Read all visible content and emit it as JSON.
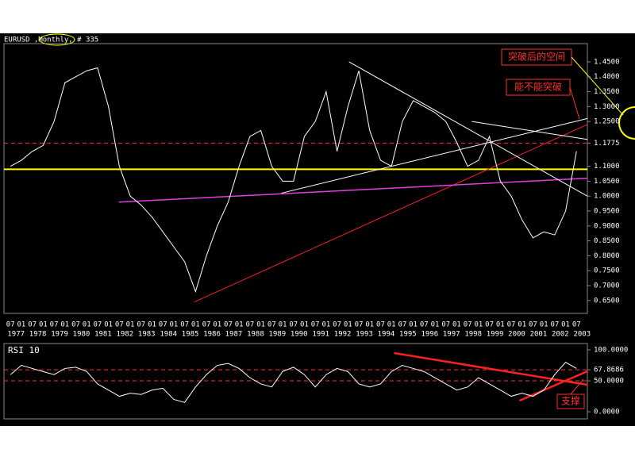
{
  "chart_data": [
    {
      "type": "line",
      "title": "EURUSD ,Monthly, # 335",
      "color": "#ffffff",
      "x": [
        1977.5,
        1978,
        1978.5,
        1979,
        1979.5,
        1980,
        1980.5,
        1981,
        1981.5,
        1982,
        1982.5,
        1983,
        1983.5,
        1984,
        1984.5,
        1985,
        1985.5,
        1986,
        1986.5,
        1987,
        1987.5,
        1988,
        1988.5,
        1989,
        1989.5,
        1990,
        1990.5,
        1991,
        1991.5,
        1992,
        1992.5,
        1993,
        1993.5,
        1994,
        1994.5,
        1995,
        1995.5,
        1996,
        1996.5,
        1997,
        1997.5,
        1998,
        1998.5,
        1999,
        1999.5,
        2000,
        2000.5,
        2001,
        2001.5,
        2002,
        2002.5,
        2003,
        2003.5
      ],
      "values": [
        1.1,
        1.12,
        1.15,
        1.17,
        1.25,
        1.38,
        1.4,
        1.42,
        1.43,
        1.3,
        1.1,
        1.0,
        0.97,
        0.93,
        0.88,
        0.83,
        0.78,
        0.68,
        0.8,
        0.9,
        0.98,
        1.1,
        1.2,
        1.22,
        1.1,
        1.05,
        1.05,
        1.2,
        1.25,
        1.35,
        1.15,
        1.3,
        1.42,
        1.22,
        1.12,
        1.1,
        1.25,
        1.32,
        1.3,
        1.28,
        1.25,
        1.18,
        1.1,
        1.12,
        1.2,
        1.05,
        1.0,
        0.92,
        0.86,
        0.88,
        0.87,
        0.95,
        1.15
      ],
      "xlim": [
        1977.2,
        2004.0
      ],
      "ylim": [
        0.607,
        1.511
      ],
      "yticks": [
        {
          "value": 1.45,
          "label": "1.4500"
        },
        {
          "value": 1.4,
          "label": "1.4000"
        },
        {
          "value": 1.35,
          "label": "1.3500"
        },
        {
          "value": 1.3,
          "label": "1.3000"
        },
        {
          "value": 1.25,
          "label": "1.2500"
        },
        {
          "value": 1.1775,
          "label": "1.1775"
        },
        {
          "value": 1.1,
          "label": "1.1000"
        },
        {
          "value": 1.05,
          "label": "1.0500"
        },
        {
          "value": 1,
          "label": "1.0000"
        },
        {
          "value": 0.95,
          "label": "0.9500"
        },
        {
          "value": 0.9,
          "label": "0.9000"
        },
        {
          "value": 0.85,
          "label": "0.8500"
        },
        {
          "value": 0.8,
          "label": "0.8000"
        },
        {
          "value": 0.75,
          "label": "0.7500"
        },
        {
          "value": 0.7,
          "label": "0.7000"
        },
        {
          "value": 0.65,
          "label": "0.6500"
        }
      ],
      "xticks": [
        {
          "value": 1977.5,
          "label": "07"
        },
        {
          "value": 1978,
          "label": "01"
        },
        {
          "value": 1978.5,
          "label": "07"
        },
        {
          "value": 1979,
          "label": "01"
        },
        {
          "value": 1979.5,
          "label": "07"
        },
        {
          "value": 1980,
          "label": "01"
        },
        {
          "value": 1980.5,
          "label": "07"
        },
        {
          "value": 1981,
          "label": "01"
        },
        {
          "value": 1981.5,
          "label": "07"
        },
        {
          "value": 1982,
          "label": "01"
        },
        {
          "value": 1982.5,
          "label": "07"
        },
        {
          "value": 1983,
          "label": "01"
        },
        {
          "value": 1983.5,
          "label": "07"
        },
        {
          "value": 1984,
          "label": "01"
        },
        {
          "value": 1984.5,
          "label": "07"
        },
        {
          "value": 1985,
          "label": "01"
        },
        {
          "value": 1985.5,
          "label": "07"
        },
        {
          "value": 1986,
          "label": "01"
        },
        {
          "value": 1986.5,
          "label": "07"
        },
        {
          "value": 1987,
          "label": "01"
        },
        {
          "value": 1987.5,
          "label": "07"
        },
        {
          "value": 1988,
          "label": "01"
        },
        {
          "value": 1988.5,
          "label": "07"
        },
        {
          "value": 1989,
          "label": "01"
        },
        {
          "value": 1989.5,
          "label": "07"
        },
        {
          "value": 1990,
          "label": "01"
        },
        {
          "value": 1990.5,
          "label": "07"
        },
        {
          "value": 1991,
          "label": "01"
        },
        {
          "value": 1991.5,
          "label": "07"
        },
        {
          "value": 1992,
          "label": "01"
        },
        {
          "value": 1992.5,
          "label": "07"
        },
        {
          "value": 1993,
          "label": "01"
        },
        {
          "value": 1993.5,
          "label": "07"
        },
        {
          "value": 1994,
          "label": "01"
        },
        {
          "value": 1994.5,
          "label": "07"
        },
        {
          "value": 1995,
          "label": "01"
        },
        {
          "value": 1995.5,
          "label": "07"
        },
        {
          "value": 1996,
          "label": "01"
        },
        {
          "value": 1996.5,
          "label": "07"
        },
        {
          "value": 1997,
          "label": "01"
        },
        {
          "value": 1997.5,
          "label": "07"
        },
        {
          "value": 1998,
          "label": "01"
        },
        {
          "value": 1998.5,
          "label": "07"
        },
        {
          "value": 1999,
          "label": "01"
        },
        {
          "value": 1999.5,
          "label": "07"
        },
        {
          "value": 2000,
          "label": "01"
        },
        {
          "value": 2000.5,
          "label": "07"
        },
        {
          "value": 2001,
          "label": "01"
        },
        {
          "value": 2001.5,
          "label": "07"
        },
        {
          "value": 2002,
          "label": "01"
        },
        {
          "value": 2002.5,
          "label": "07"
        },
        {
          "value": 2003,
          "label": "01"
        },
        {
          "value": 2003.5,
          "label": "07"
        }
      ],
      "x_year_labels": [
        "1977",
        "1978",
        "1979",
        "1980",
        "1981",
        "1982",
        "1983",
        "1984",
        "1985",
        "1986",
        "1987",
        "1988",
        "1989",
        "1990",
        "1991",
        "1992",
        "1993",
        "1994",
        "1995",
        "1996",
        "1997",
        "1998",
        "1999",
        "2000",
        "2001",
        "2002",
        "2003"
      ],
      "levels": [
        {
          "value": 1.1775,
          "color": "#ff3333"
        }
      ],
      "trendlines": [
        {
          "color": "#ffff00",
          "width": 2,
          "points": [
            [
              1977.2,
              1.09
            ],
            [
              2004.0,
              1.09
            ]
          ]
        },
        {
          "color": "#ff2020",
          "width": 1,
          "points": [
            [
              1985.94,
              0.645
            ],
            [
              2004.0,
              1.24
            ]
          ]
        },
        {
          "color": "#e040e0",
          "width": 1.5,
          "points": [
            [
              1982.48,
              0.98
            ],
            [
              2004.0,
              1.06
            ]
          ]
        },
        {
          "color": "#ffffff",
          "width": 1,
          "points": [
            [
              1989.95,
              1.01
            ],
            [
              2004.0,
              1.26
            ]
          ]
        },
        {
          "color": "#ffffff",
          "width": 1,
          "points": [
            [
              1993.05,
              1.45
            ],
            [
              2004.0,
              1.0
            ]
          ]
        },
        {
          "color": "#ffffff",
          "width": 1,
          "points": [
            [
              1998.69,
              1.25
            ],
            [
              2004.0,
              1.19
            ]
          ]
        }
      ],
      "annotations": [
        "突破后的空间",
        "能不能突破"
      ]
    },
    {
      "type": "line",
      "title": "RSI 10",
      "color": "#ffffff",
      "x": [
        1977.5,
        1978,
        1978.5,
        1979,
        1979.5,
        1980,
        1980.5,
        1981,
        1981.5,
        1982,
        1982.5,
        1983,
        1983.5,
        1984,
        1984.5,
        1985,
        1985.5,
        1986,
        1986.5,
        1987,
        1987.5,
        1988,
        1988.5,
        1989,
        1989.5,
        1990,
        1990.5,
        1991,
        1991.5,
        1992,
        1992.5,
        1993,
        1993.5,
        1994,
        1994.5,
        1995,
        1995.5,
        1996,
        1996.5,
        1997,
        1997.5,
        1998,
        1998.5,
        1999,
        1999.5,
        2000,
        2000.5,
        2001,
        2001.5,
        2002,
        2002.5,
        2003,
        2003.5
      ],
      "values": [
        60,
        75,
        70,
        65,
        60,
        70,
        72,
        65,
        45,
        35,
        25,
        30,
        28,
        35,
        38,
        20,
        15,
        40,
        60,
        75,
        78,
        70,
        55,
        45,
        40,
        65,
        72,
        60,
        40,
        60,
        70,
        65,
        45,
        40,
        45,
        65,
        75,
        70,
        65,
        55,
        45,
        35,
        40,
        55,
        45,
        35,
        25,
        30,
        25,
        35,
        60,
        80,
        70
      ],
      "xlim": [
        1977.2,
        2004.0
      ],
      "ylim": [
        -11.5,
        110.3
      ],
      "yticks": [
        {
          "value": 100,
          "label": "100.0000"
        },
        {
          "value": 67.8686,
          "label": "67.8686"
        },
        {
          "value": 50,
          "label": "50.0000"
        },
        {
          "value": 0,
          "label": "0.0000"
        }
      ],
      "levels": [
        {
          "value": 67.8686,
          "color": "#ff3333"
        },
        {
          "value": 50,
          "color": "#ff3333"
        }
      ],
      "trendlines": [
        {
          "color": "#ff2020",
          "width": 2.5,
          "points": [
            [
              1995.12,
              94.9
            ],
            [
              2004.0,
              43.6
            ]
          ]
        },
        {
          "color": "#ff2020",
          "width": 2.5,
          "points": [
            [
              2000.88,
              18
            ],
            [
              2004.0,
              65.4
            ]
          ]
        }
      ],
      "annotations": [
        "支撑"
      ]
    }
  ]
}
